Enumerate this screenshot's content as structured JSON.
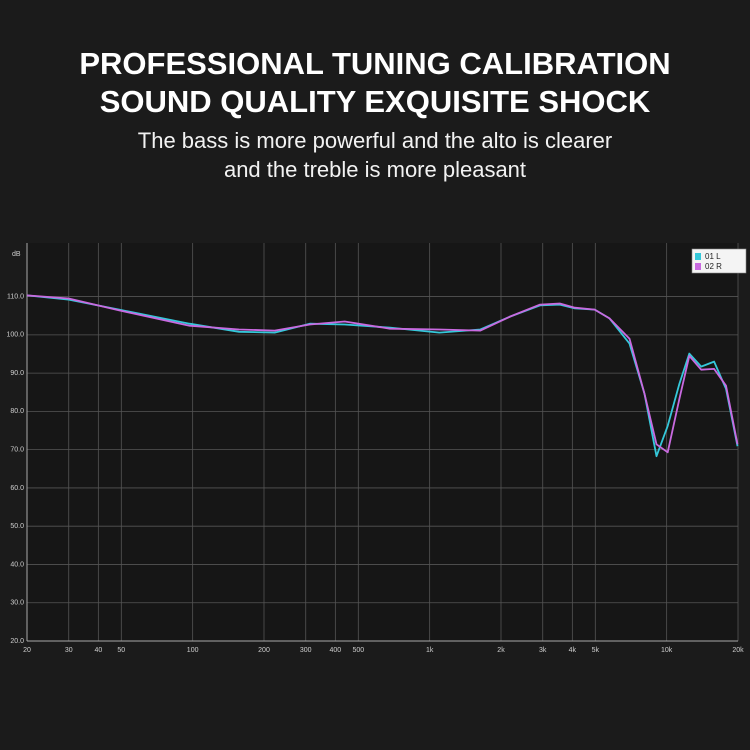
{
  "chart_data": {
    "type": "line",
    "title": "PROFESSIONAL TUNING CALIBRATION",
    "title_line2": "SOUND QUALITY EXQUISITE SHOCK",
    "subtitle": "The bass is more powerful and the alto is clearer",
    "subtitle_line2": "and the treble is more pleasant",
    "y_label": "dB",
    "log_x": true,
    "grid": true,
    "legend_position": "top-right",
    "xlim": [
      20,
      20000
    ],
    "ylim": [
      20,
      124
    ],
    "xticks": [
      20,
      30,
      40,
      50,
      100,
      200,
      300,
      400,
      500,
      {
        "value": 1000,
        "label": "1k"
      },
      {
        "value": 2000,
        "label": "2k"
      },
      {
        "value": 3000,
        "label": "3k"
      },
      {
        "value": 4000,
        "label": "4k"
      },
      {
        "value": 5000,
        "label": "5k"
      },
      {
        "value": 10000,
        "label": "10k"
      },
      {
        "value": 20000,
        "label": "20k"
      }
    ],
    "yticks": [
      {
        "value": 20,
        "label": "20.0"
      },
      {
        "value": 30,
        "label": "30.0"
      },
      {
        "value": 40,
        "label": "40.0"
      },
      {
        "value": 50,
        "label": "50.0"
      },
      {
        "value": 60,
        "label": "60.0"
      },
      {
        "value": 70,
        "label": "70.0"
      },
      {
        "value": 80,
        "label": "80.0"
      },
      {
        "value": 90,
        "label": "90.0"
      },
      {
        "value": 100,
        "label": "100.0"
      },
      {
        "value": 110,
        "label": "110.0"
      }
    ],
    "x": [
      20,
      30,
      49,
      97,
      157,
      222,
      312,
      438,
      680,
      1099,
      1637,
      2190,
      2920,
      3540,
      4100,
      4970,
      5740,
      6970,
      8060,
      9060,
      10100,
      11320,
      12460,
      13990,
      15850,
      17800,
      19900
    ],
    "series": [
      {
        "name": "01 L",
        "color": "#35c8da",
        "values": [
          110.3,
          109.2,
          106.6,
          102.9,
          100.8,
          100.6,
          102.9,
          102.7,
          101.9,
          100.6,
          101.4,
          104.8,
          107.7,
          107.9,
          106.9,
          106.6,
          104.3,
          97.7,
          84.6,
          68.3,
          76.2,
          87.2,
          95.1,
          91.7,
          93,
          85.9,
          70.9
        ]
      },
      {
        "name": "02 R",
        "color": "#c96ae0",
        "values": [
          110.3,
          109.5,
          106.4,
          102.4,
          101.4,
          101.1,
          102.7,
          103.5,
          101.6,
          101.4,
          101.1,
          104.8,
          107.9,
          108.2,
          107.1,
          106.6,
          104.3,
          99,
          84.6,
          71.4,
          69.3,
          83.3,
          94.5,
          90.9,
          91.1,
          86.7,
          71.4
        ]
      }
    ]
  }
}
